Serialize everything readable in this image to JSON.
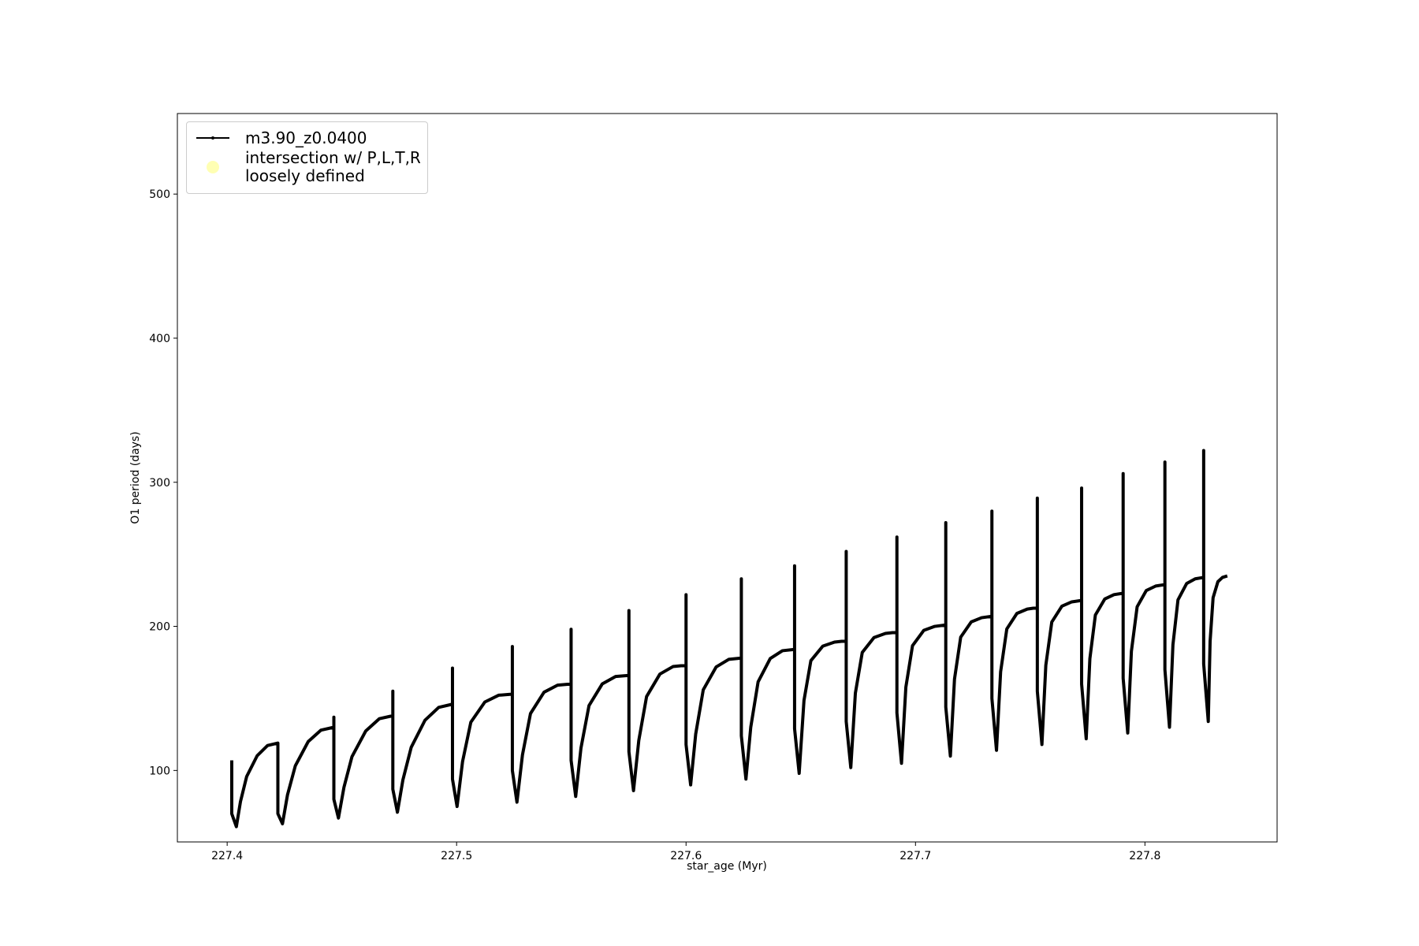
{
  "chart_data": {
    "type": "line",
    "xlabel": "star_age (Myr)",
    "ylabel": "O1 period (days)",
    "xlim": [
      227.3783,
      227.8576
    ],
    "ylim": [
      50.4,
      555.9
    ],
    "xticks": [
      227.4,
      227.5,
      227.6,
      227.7,
      227.8
    ],
    "yticks": [
      100,
      200,
      300,
      400,
      500
    ],
    "grid": false,
    "legend": "upper left",
    "series": [
      {
        "name": "m3.90_z0.0400",
        "color": "#000000",
        "type": "line",
        "x": [
          227.402,
          227.402,
          227.404,
          227.4058,
          227.4085,
          227.4131,
          227.4176,
          227.4221,
          227.4221,
          227.4241,
          227.4263,
          227.4297,
          227.4353,
          227.4409,
          227.4465,
          227.4465,
          227.4465,
          227.4485,
          227.4509,
          227.4544,
          227.4604,
          227.4663,
          227.4722,
          227.4722,
          227.4722,
          227.4742,
          227.4766,
          227.4802,
          227.4862,
          227.4922,
          227.4982,
          227.4982,
          227.4982,
          227.5002,
          227.5026,
          227.5062,
          227.5123,
          227.5183,
          227.5243,
          227.5243,
          227.5243,
          227.5263,
          227.5287,
          227.5322,
          227.5381,
          227.544,
          227.5499,
          227.5499,
          227.5499,
          227.5519,
          227.5542,
          227.5577,
          227.5635,
          227.5693,
          227.5751,
          227.5751,
          227.5751,
          227.5771,
          227.5794,
          227.5828,
          227.5886,
          227.5943,
          227.6,
          227.6,
          227.6,
          227.602,
          227.6042,
          227.6075,
          227.6131,
          227.6186,
          227.6241,
          227.6241,
          227.6241,
          227.6261,
          227.6282,
          227.6314,
          227.6367,
          227.642,
          227.6473,
          227.6473,
          227.6473,
          227.6493,
          227.6514,
          227.6544,
          227.6596,
          227.6647,
          227.6698,
          227.6698,
          227.6698,
          227.6718,
          227.6738,
          227.6768,
          227.6819,
          227.6869,
          227.6919,
          227.6919,
          227.6919,
          227.6939,
          227.6958,
          227.6987,
          227.7036,
          227.7084,
          227.7132,
          227.7132,
          227.7132,
          227.7152,
          227.717,
          227.7197,
          227.7243,
          227.7288,
          227.7333,
          227.7333,
          227.7333,
          227.7353,
          227.7371,
          227.7398,
          227.7442,
          227.7487,
          227.7531,
          227.7531,
          227.7531,
          227.7551,
          227.7568,
          227.7594,
          227.7638,
          227.7681,
          227.7724,
          227.7724,
          227.7724,
          227.7744,
          227.776,
          227.7784,
          227.7825,
          227.7865,
          227.7905,
          227.7905,
          227.7905,
          227.7925,
          227.7941,
          227.7966,
          227.8006,
          227.8047,
          227.8087,
          227.8087,
          227.8087,
          227.8107,
          227.8122,
          227.8144,
          227.8182,
          227.8219,
          227.8256,
          227.8256,
          227.8256,
          227.8276,
          227.8284,
          227.8297,
          227.8318,
          227.8338,
          227.8359
        ],
        "values": [
          107,
          70,
          61,
          78.4,
          95.8,
          110.3,
          117.3,
          119,
          70,
          63,
          83.1,
          103.2,
          120,
          128,
          130,
          137,
          80,
          67,
          88.3,
          109.6,
          127.4,
          135.9,
          138,
          155,
          87,
          71,
          93.5,
          116,
          134.8,
          143.8,
          146,
          171,
          94,
          75,
          106.2,
          133.5,
          147.5,
          152.2,
          153,
          186,
          100,
          78,
          110.8,
          139.5,
          154.3,
          159.2,
          160,
          198,
          107,
          82,
          115.6,
          145,
          160.1,
          165.2,
          166,
          211,
          113,
          86,
          120.8,
          151.3,
          166.9,
          172.1,
          173,
          222,
          118,
          90,
          125.2,
          156,
          171.8,
          177.1,
          178,
          233,
          124,
          94,
          130,
          161.5,
          177.7,
          183.1,
          184,
          242,
          129,
          98,
          148.6,
          176.2,
          186.3,
          189.1,
          190,
          252,
          134,
          102,
          153.7,
          181.9,
          192.2,
          195.1,
          196,
          262,
          140,
          105,
          157.8,
          186.6,
          197.2,
          200,
          201,
          272,
          144,
          110,
          163.4,
          192.5,
          203.1,
          206,
          207,
          280,
          150,
          114,
          168.5,
          198.2,
          209,
          212,
          213,
          289,
          155,
          118,
          173,
          203,
          214,
          217,
          218,
          296,
          160,
          122,
          177.6,
          207.9,
          219,
          222,
          223,
          306,
          164,
          126,
          182.7,
          213.6,
          224.9,
          228,
          229,
          314,
          170,
          130,
          187.2,
          218.4,
          229.8,
          233,
          234,
          322,
          174,
          134,
          189.6,
          219.9,
          231,
          234,
          235
        ]
      },
      {
        "name": "intersection w/ P,L,T,R\nloosely defined",
        "color": "#ffffb3",
        "type": "scatter",
        "x": [],
        "values": []
      }
    ]
  }
}
